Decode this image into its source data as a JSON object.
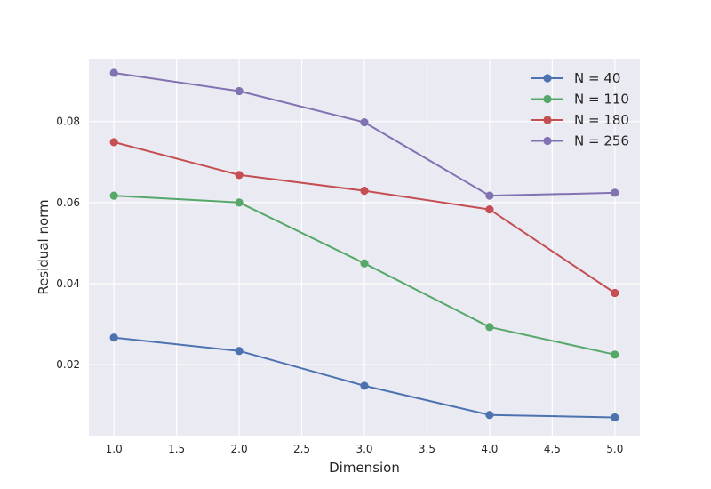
{
  "chart_data": {
    "type": "line",
    "xlabel": "Dimension",
    "ylabel": "Residual norm",
    "xlim": [
      0.8,
      5.2
    ],
    "ylim": [
      0.0025,
      0.0955
    ],
    "x_ticks": [
      1.0,
      1.5,
      2.0,
      2.5,
      3.0,
      3.5,
      4.0,
      4.5,
      5.0
    ],
    "x_tick_labels": [
      "1.0",
      "1.5",
      "2.0",
      "2.5",
      "3.0",
      "3.5",
      "4.0",
      "4.5",
      "5.0"
    ],
    "y_ticks": [
      0.02,
      0.04,
      0.06,
      0.08
    ],
    "y_tick_labels": [
      "0.02",
      "0.04",
      "0.06",
      "0.08"
    ],
    "grid": true,
    "legend_position": "top-right",
    "x": [
      1.0,
      2.0,
      3.0,
      4.0,
      5.0
    ],
    "series": [
      {
        "name": "N = 40",
        "color": "#4c72b0",
        "values": [
          0.0267,
          0.0234,
          0.0148,
          0.0076,
          0.007
        ]
      },
      {
        "name": "N = 110",
        "color": "#55a868",
        "values": [
          0.0617,
          0.06,
          0.045,
          0.0293,
          0.0225
        ]
      },
      {
        "name": "N = 180",
        "color": "#c44e52",
        "values": [
          0.0749,
          0.0668,
          0.0629,
          0.0583,
          0.0377
        ]
      },
      {
        "name": "N = 256",
        "color": "#8172b2",
        "values": [
          0.092,
          0.0875,
          0.0798,
          0.0617,
          0.0624
        ]
      }
    ],
    "colors": {
      "plot_background": "#eaeaf2",
      "grid": "#ffffff",
      "text": "#262626"
    }
  }
}
